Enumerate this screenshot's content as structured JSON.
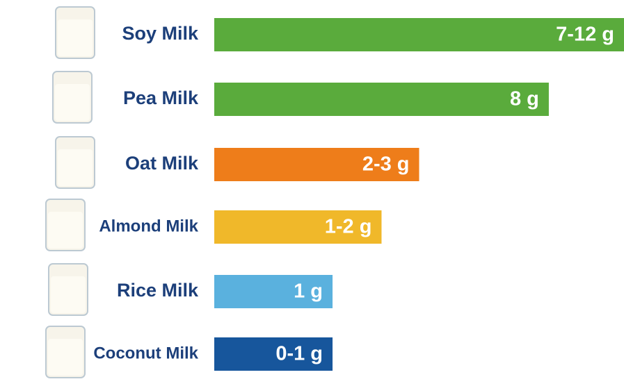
{
  "chart_data": {
    "type": "bar",
    "orientation": "horizontal",
    "categories": [
      "Soy Milk",
      "Pea Milk",
      "Oat Milk",
      "Almond Milk",
      "Rice Milk",
      "Coconut Milk"
    ],
    "values": [
      [
        7,
        12
      ],
      [
        8,
        8
      ],
      [
        2,
        3
      ],
      [
        1,
        2
      ],
      [
        1,
        1
      ],
      [
        0,
        1
      ]
    ],
    "value_labels": [
      "7-12 g",
      "8 g",
      "2-3 g",
      "1-2 g",
      "1 g",
      "0-1 g"
    ],
    "colors": [
      "#5aab3c",
      "#5aab3c",
      "#ee7d1a",
      "#f0b82a",
      "#5ab1de",
      "#17569c"
    ]
  }
}
